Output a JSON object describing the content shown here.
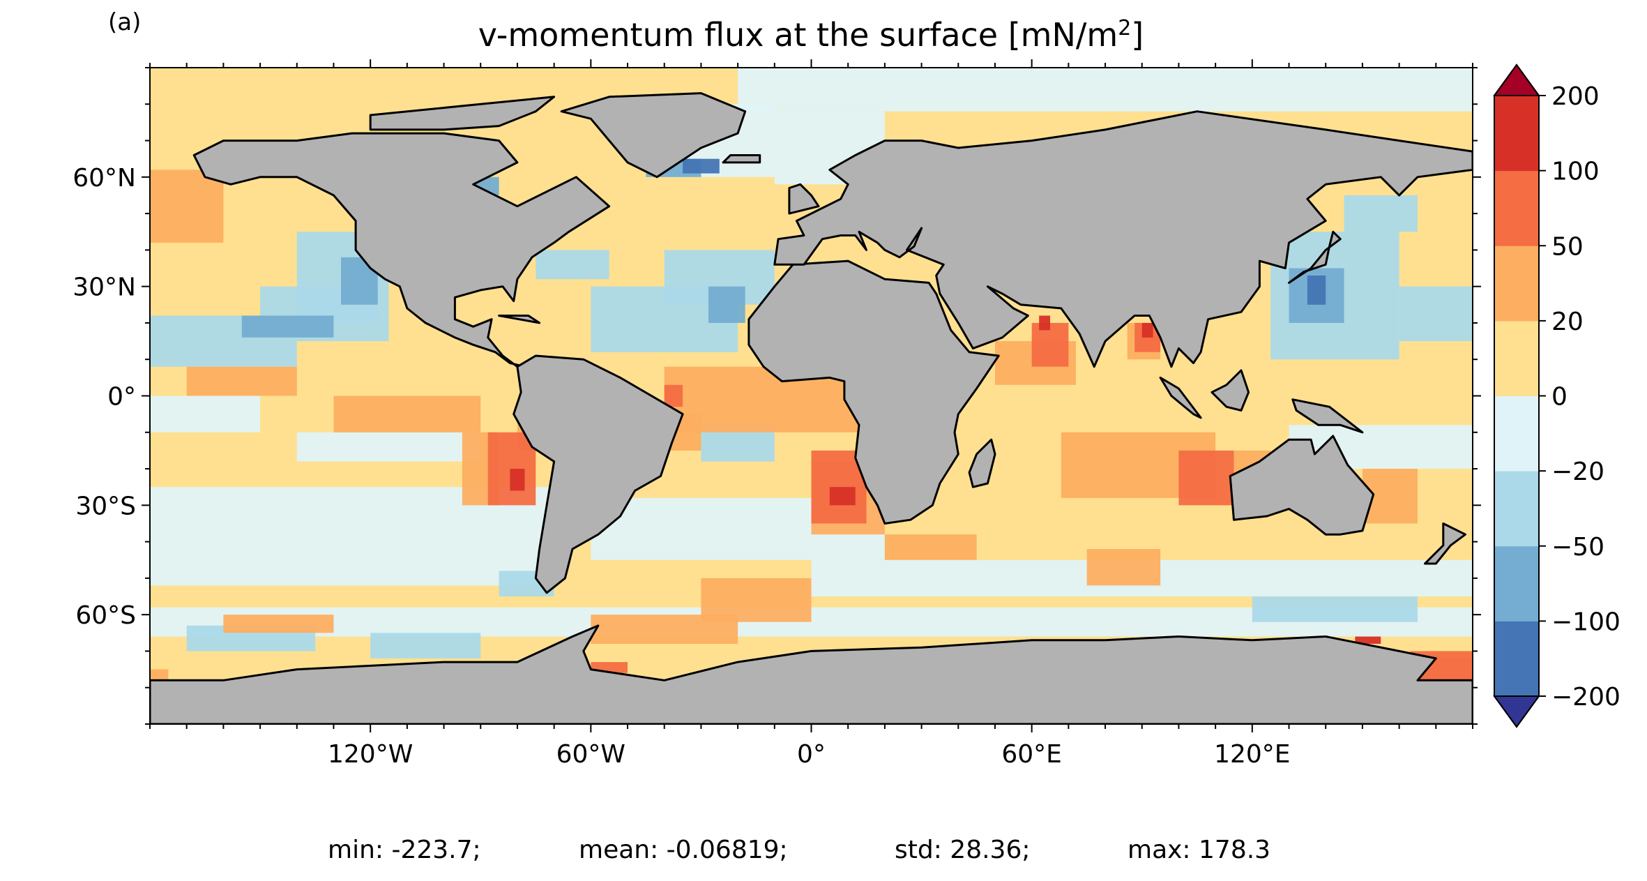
{
  "chart_data": {
    "type": "heatmap",
    "panel_label": "(a)",
    "title_main": "v-momentum flux at the surface [mN/m",
    "title_sup": "2",
    "title_end": "]",
    "x_ticks": [
      "120°W",
      "60°W",
      "0°",
      "60°E",
      "120°E"
    ],
    "x_tick_values": [
      -120,
      -60,
      0,
      60,
      120
    ],
    "y_ticks": [
      "60°N",
      "30°N",
      "0°",
      "30°S",
      "60°S"
    ],
    "y_tick_values": [
      60,
      30,
      0,
      -30,
      -60
    ],
    "xlim": [
      -180,
      180
    ],
    "ylim": [
      -90,
      90
    ],
    "colorbar": {
      "extend": "both",
      "levels": [
        -200,
        -100,
        -50,
        -20,
        0,
        20,
        50,
        100,
        200
      ],
      "tick_labels": [
        "−200",
        "−100",
        "−50",
        "−20",
        "0",
        "20",
        "50",
        "100",
        "200"
      ],
      "colors": [
        "#4575b4",
        "#74add1",
        "#abd9e9",
        "#e0f3f8",
        "#fee090",
        "#fdae61",
        "#f46d43",
        "#d73027"
      ],
      "under_color": "#313695",
      "over_color": "#a50026"
    },
    "land_color": "#b2b2b2",
    "stats": {
      "min": "min: -223.7;",
      "mean": "mean: -0.06819;",
      "std": "std: 28.36;",
      "max": "max: 178.3"
    }
  }
}
